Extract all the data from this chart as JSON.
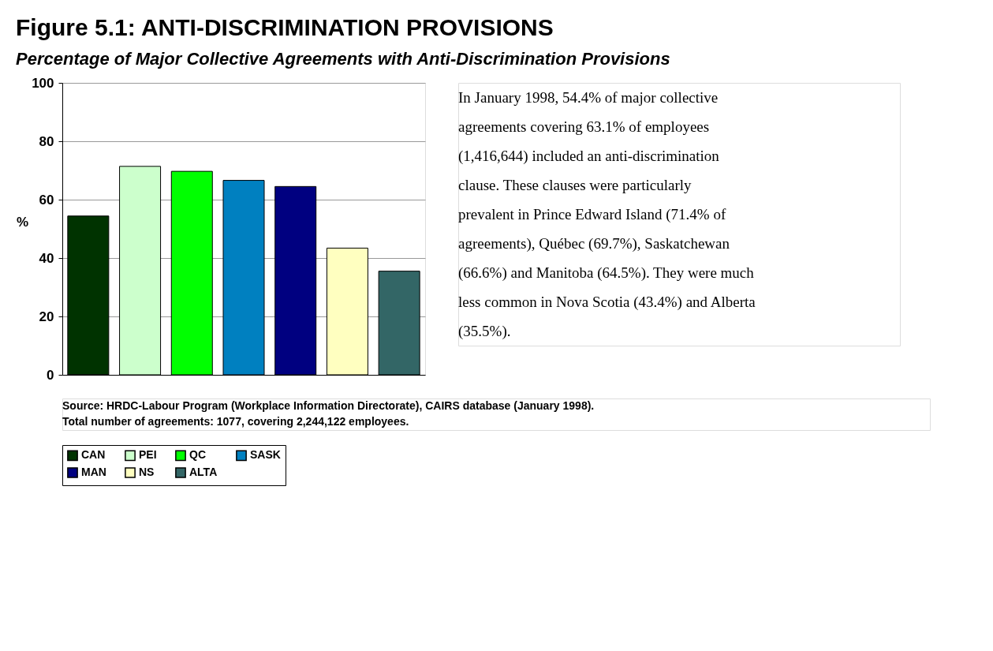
{
  "chart_data": {
    "type": "bar",
    "title": "Figure 5.1:  ANTI-DISCRIMINATION PROVISIONS",
    "subtitle": "Percentage of Major Collective Agreements with Anti-Discrimination Provisions",
    "ylabel": "%",
    "categories": [
      null,
      null,
      null,
      null,
      null,
      null,
      null
    ],
    "series": [
      {
        "name": "CAN",
        "color": "#003300",
        "values": [
          54.4,
          null,
          null,
          null,
          null,
          null,
          null
        ]
      },
      {
        "name": "PEI",
        "color": "#ccffcc",
        "values": [
          null,
          71.4,
          null,
          null,
          null,
          null,
          null
        ]
      },
      {
        "name": "QC",
        "color": "#00ff00",
        "values": [
          null,
          null,
          69.7,
          null,
          null,
          null,
          null
        ]
      },
      {
        "name": "SASK",
        "color": "#0080c0",
        "values": [
          null,
          null,
          null,
          66.6,
          null,
          null,
          null
        ]
      },
      {
        "name": "MAN",
        "color": "#000080",
        "values": [
          null,
          null,
          null,
          null,
          64.5,
          null,
          null
        ]
      },
      {
        "name": "NS",
        "color": "#ffffc0",
        "values": [
          null,
          null,
          null,
          null,
          null,
          43.4,
          null
        ]
      },
      {
        "name": "ALTA",
        "color": "#336666",
        "values": [
          null,
          null,
          null,
          null,
          null,
          null,
          35.5
        ]
      }
    ],
    "ylim": [
      0,
      100
    ],
    "yticks": [
      0,
      20,
      40,
      60,
      80,
      100
    ],
    "grid": "y",
    "legend": "bottom",
    "annotations": [
      "In January 1998, 54.4% of major collective agreements covering 63.1% of employees (1,416,644) included an anti-discrimination clause.  These clauses were particularly prevalent in Prince Edward Island (71.4% of agreements), Québec (69.7%), Saskatchewan (66.6%) and Manitoba (64.5%).  They were much less common in Nova Scotia (43.4%) and Alberta (35.5%).",
      "Source:  HRDC-Labour Program (Workplace Information Directorate), CAIRS database (January 1998).",
      "Total number of agreements: 1077, covering 2,244,122 employees."
    ]
  }
}
